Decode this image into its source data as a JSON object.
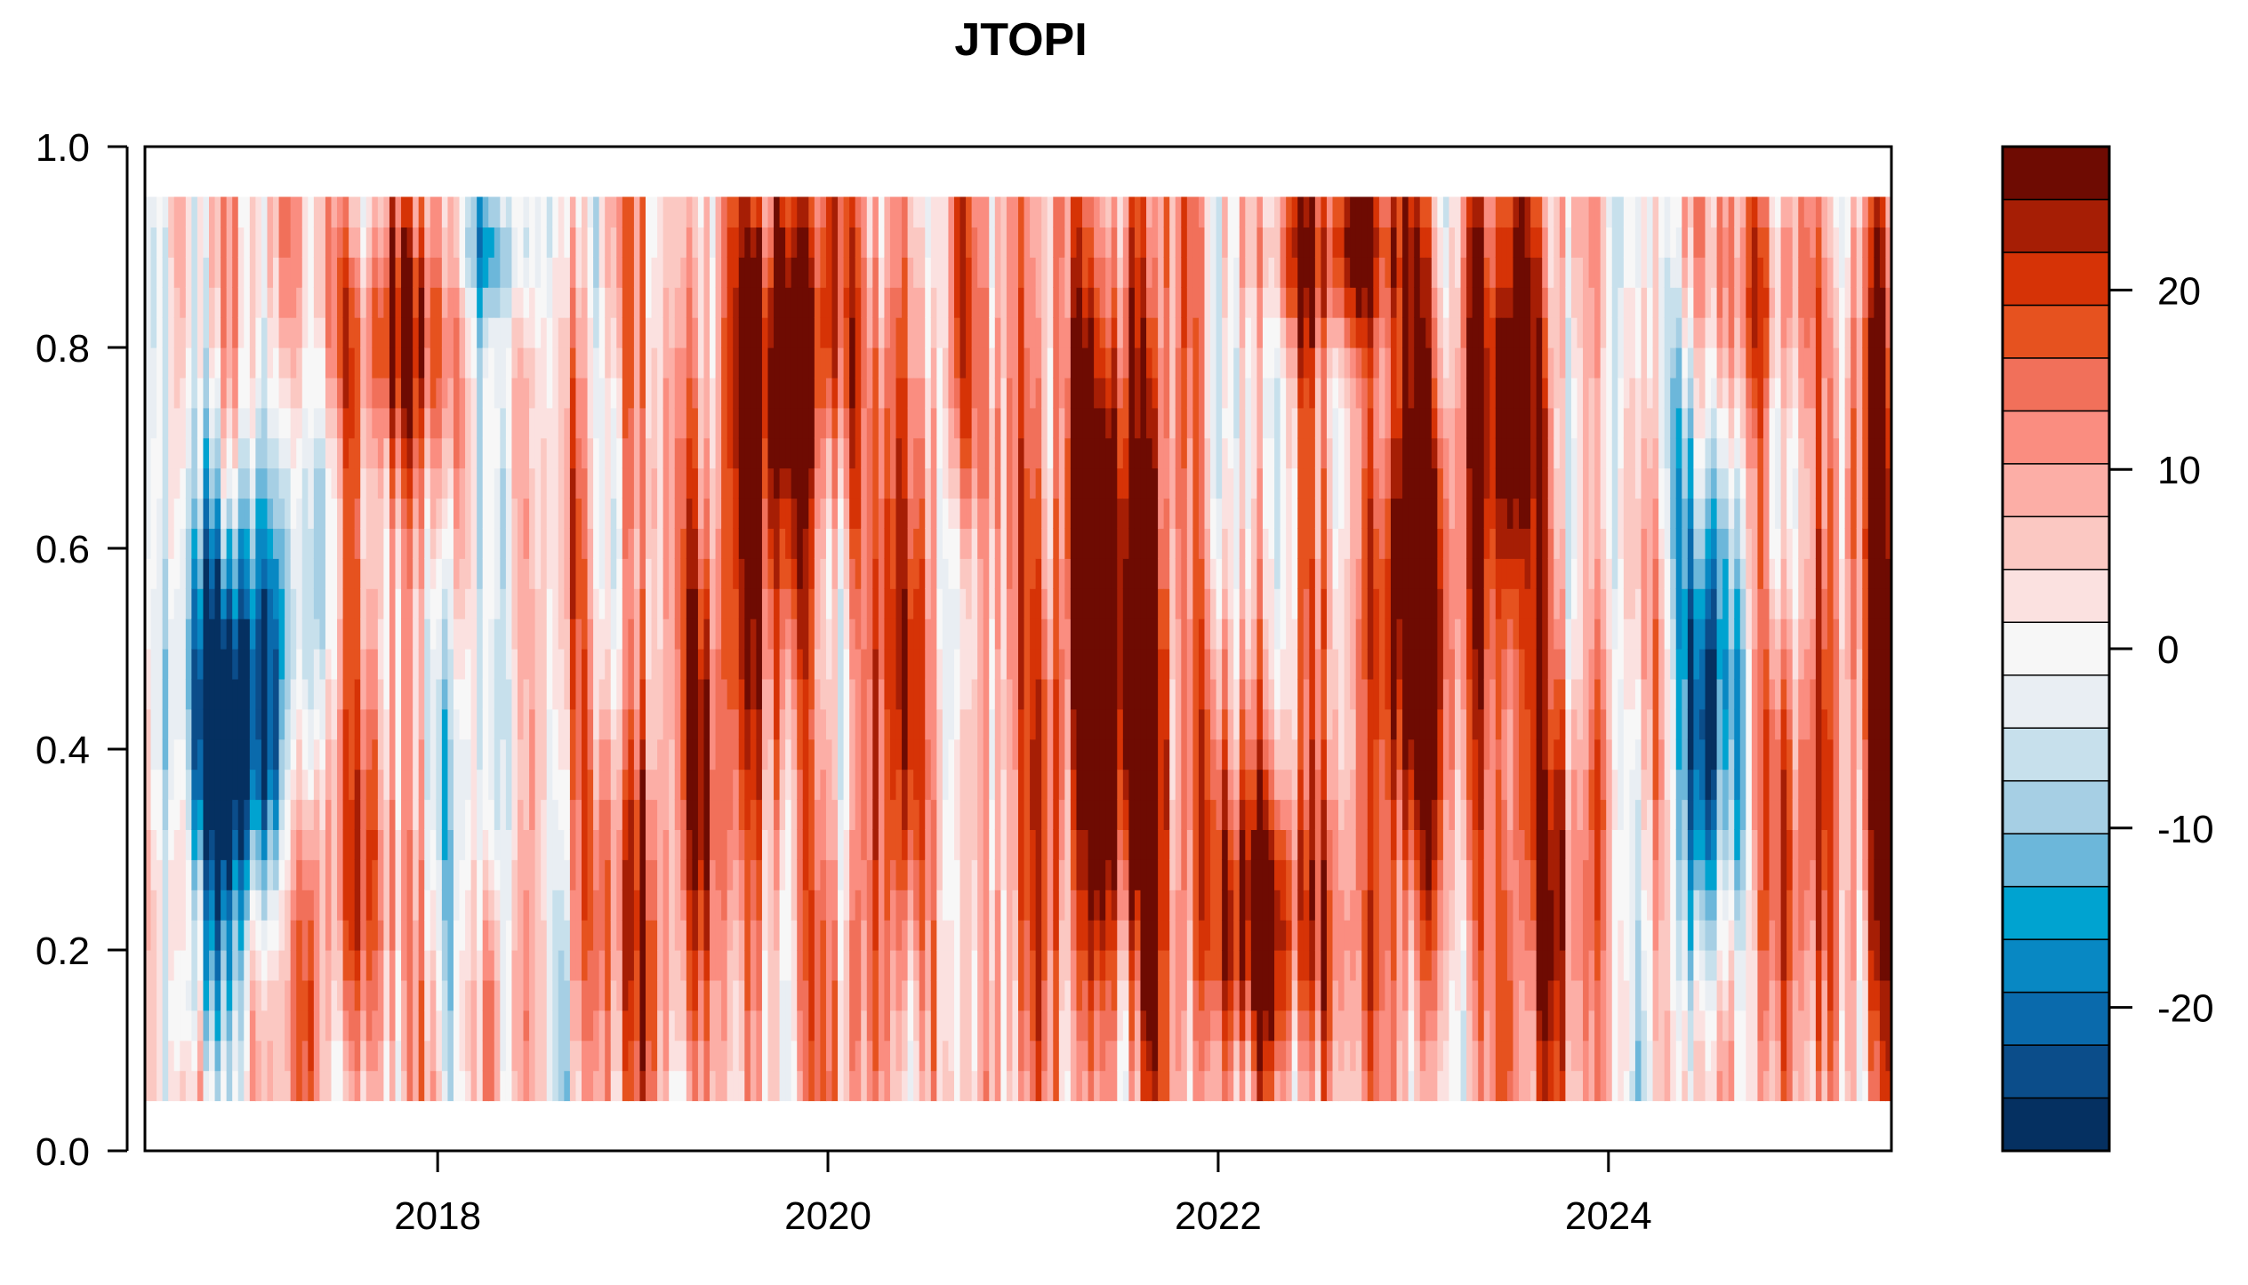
{
  "chart_data": {
    "type": "heatmap",
    "title": "JTOPI",
    "xlabel": "",
    "ylabel": "",
    "x_range": [
      2016.5,
      2025.45
    ],
    "x_ticks": [
      2018,
      2020,
      2022,
      2024
    ],
    "x_tick_labels": [
      "2018",
      "2020",
      "2022",
      "2024"
    ],
    "y_range": [
      0.0,
      1.0
    ],
    "y_data_range": [
      0.05,
      0.95
    ],
    "y_ticks": [
      0.0,
      0.2,
      0.4,
      0.6,
      0.8,
      1.0
    ],
    "y_tick_labels": [
      "0.0",
      "0.2",
      "0.4",
      "0.6",
      "0.8",
      "1.0"
    ],
    "colorbar": {
      "range": [
        -28,
        28
      ],
      "ticks": [
        -20,
        -10,
        0,
        10,
        20
      ],
      "tick_labels": [
        "-20",
        "-10",
        "0",
        "10",
        "20"
      ],
      "colors": [
        "#053061",
        "#0b4d8a",
        "#0a6aac",
        "#0888c3",
        "#00a3d0",
        "#6cb7da",
        "#a6cfe4",
        "#c7e0ec",
        "#e9eef3",
        "#f7f7f7",
        "#fbe1e0",
        "#fbc8c2",
        "#fcaea6",
        "#fa8d80",
        "#f1705a",
        "#e6521f",
        "#d63306",
        "#a61e05",
        "#6e0b02"
      ]
    },
    "features": [
      {
        "x": 2016.95,
        "y": 0.5,
        "value": -26,
        "sx": 0.22,
        "sy": 0.16
      },
      {
        "x": 2016.95,
        "y": 0.38,
        "value": -18,
        "sx": 0.2,
        "sy": 0.12
      },
      {
        "x": 2016.75,
        "y": 0.15,
        "value": -8,
        "sx": 0.12,
        "sy": 0.06
      },
      {
        "x": 2017.75,
        "y": 0.82,
        "value": 20,
        "sx": 0.22,
        "sy": 0.1
      },
      {
        "x": 2017.55,
        "y": 0.25,
        "value": 12,
        "sx": 0.25,
        "sy": 0.15
      },
      {
        "x": 2018.3,
        "y": 0.9,
        "value": -14,
        "sx": 0.15,
        "sy": 0.05
      },
      {
        "x": 2018.25,
        "y": 0.35,
        "value": -8,
        "sx": 0.15,
        "sy": 0.12
      },
      {
        "x": 2018.95,
        "y": 0.25,
        "value": 16,
        "sx": 0.15,
        "sy": 0.15
      },
      {
        "x": 2019.5,
        "y": 0.55,
        "value": 14,
        "sx": 0.35,
        "sy": 0.3
      },
      {
        "x": 2019.85,
        "y": 0.82,
        "value": 18,
        "sx": 0.22,
        "sy": 0.12
      },
      {
        "x": 2020.08,
        "y": 0.5,
        "value": -6,
        "sx": 0.1,
        "sy": 0.25
      },
      {
        "x": 2020.3,
        "y": 0.5,
        "value": 12,
        "sx": 0.25,
        "sy": 0.35
      },
      {
        "x": 2020.7,
        "y": 0.55,
        "value": -12,
        "sx": 0.08,
        "sy": 0.1
      },
      {
        "x": 2021.2,
        "y": 0.6,
        "value": 14,
        "sx": 0.3,
        "sy": 0.3
      },
      {
        "x": 2021.6,
        "y": 0.45,
        "value": 22,
        "sx": 0.22,
        "sy": 0.25
      },
      {
        "x": 2022.3,
        "y": 0.22,
        "value": 26,
        "sx": 0.25,
        "sy": 0.12
      },
      {
        "x": 2022.6,
        "y": 0.9,
        "value": 20,
        "sx": 0.3,
        "sy": 0.07
      },
      {
        "x": 2022.6,
        "y": 0.5,
        "value": 4,
        "sx": 0.25,
        "sy": 0.1
      },
      {
        "x": 2022.95,
        "y": 0.55,
        "value": 28,
        "sx": 0.14,
        "sy": 0.2
      },
      {
        "x": 2023.45,
        "y": 0.72,
        "value": 20,
        "sx": 0.22,
        "sy": 0.18
      },
      {
        "x": 2023.6,
        "y": 0.25,
        "value": 16,
        "sx": 0.22,
        "sy": 0.18
      },
      {
        "x": 2024.5,
        "y": 0.45,
        "value": -24,
        "sx": 0.12,
        "sy": 0.18
      },
      {
        "x": 2024.35,
        "y": 0.75,
        "value": -8,
        "sx": 0.15,
        "sy": 0.12
      },
      {
        "x": 2024.8,
        "y": 0.85,
        "value": 14,
        "sx": 0.2,
        "sy": 0.1
      },
      {
        "x": 2025.1,
        "y": 0.3,
        "value": 14,
        "sx": 0.18,
        "sy": 0.2
      },
      {
        "x": 2025.4,
        "y": 0.55,
        "value": 22,
        "sx": 0.06,
        "sy": 0.3
      }
    ]
  }
}
